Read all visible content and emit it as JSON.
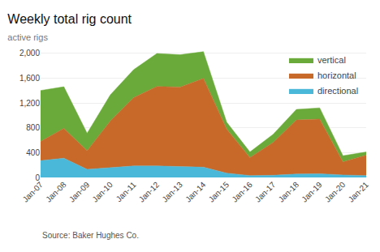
{
  "chart_data": {
    "type": "area",
    "title": "Weekly total rig count",
    "subtitle": "active rigs",
    "source": "Source: Baker Hughes Co.",
    "categories": [
      "Jan-07",
      "Jan-08",
      "Jan-09",
      "Jan-10",
      "Jan-11",
      "Jan-12",
      "Jan-13",
      "Jan-14",
      "Jan-15",
      "Jan-16",
      "Jan-17",
      "Jan-18",
      "Jan-19",
      "Jan-20",
      "Jan-21"
    ],
    "series": [
      {
        "name": "directional",
        "color": "#4ab8d8",
        "values": [
          270,
          310,
          130,
          160,
          185,
          185,
          175,
          165,
          70,
          30,
          35,
          55,
          60,
          40,
          30
        ]
      },
      {
        "name": "horizontal",
        "color": "#c8692a",
        "values": [
          310,
          480,
          300,
          750,
          1100,
          1280,
          1280,
          1430,
          710,
          290,
          530,
          870,
          880,
          210,
          330
        ]
      },
      {
        "name": "vertical",
        "color": "#6aaa3a",
        "values": [
          820,
          670,
          280,
          420,
          450,
          530,
          520,
          430,
          110,
          90,
          130,
          170,
          180,
          100,
          50
        ]
      }
    ],
    "stacked": true,
    "ylim": [
      0,
      2100
    ],
    "yticks": [
      0,
      400,
      800,
      {
        "value": 1200,
        "label": "1,200"
      },
      {
        "value": 1600,
        "label": "1,600"
      },
      {
        "value": 2000,
        "label": "2,000"
      }
    ],
    "grid": true,
    "legend": "upper right"
  }
}
